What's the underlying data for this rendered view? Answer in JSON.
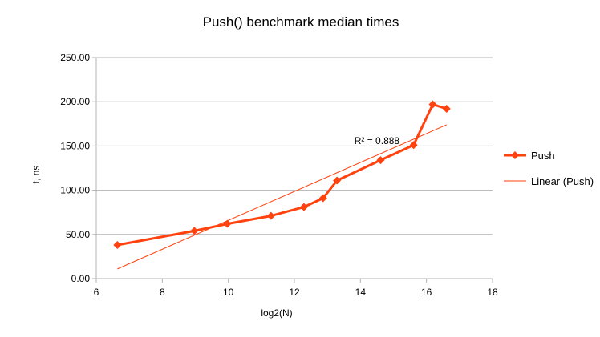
{
  "chart_data": {
    "type": "line",
    "title": "Push() benchmark median times",
    "xlabel": "log2(N)",
    "ylabel": "t, ns",
    "xlim": [
      6,
      18
    ],
    "ylim": [
      0,
      250
    ],
    "x_ticks": [
      6,
      8,
      10,
      12,
      14,
      16,
      18
    ],
    "y_ticks": [
      0,
      50,
      100,
      150,
      200,
      250
    ],
    "y_tick_labels": [
      "0.00",
      "50.00",
      "100.00",
      "150.00",
      "200.00",
      "250.00"
    ],
    "grid": "horizontal",
    "legend_position": "right",
    "series": [
      {
        "name": "Push",
        "color": "#ff420e",
        "marker": "diamond",
        "points": [
          {
            "x": 6.64,
            "y": 38
          },
          {
            "x": 8.97,
            "y": 54
          },
          {
            "x": 9.97,
            "y": 62
          },
          {
            "x": 11.29,
            "y": 71
          },
          {
            "x": 12.29,
            "y": 81
          },
          {
            "x": 12.87,
            "y": 91
          },
          {
            "x": 13.29,
            "y": 111
          },
          {
            "x": 14.61,
            "y": 134
          },
          {
            "x": 15.61,
            "y": 151
          },
          {
            "x": 16.19,
            "y": 197
          },
          {
            "x": 16.61,
            "y": 192
          }
        ]
      }
    ],
    "trendline": {
      "name": "Linear (Push)",
      "type": "linear",
      "color": "#ff420e",
      "x_range": [
        6.64,
        16.61
      ],
      "y_range": [
        11,
        174
      ],
      "r_squared_label": "R² = 0.888",
      "r_squared_anchor": {
        "x": 14.5,
        "y": 156
      }
    }
  }
}
